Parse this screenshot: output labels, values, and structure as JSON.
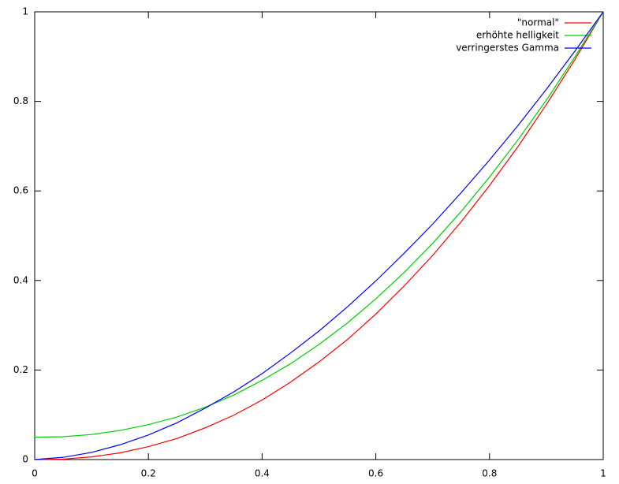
{
  "chart_data": {
    "type": "line",
    "x": [
      0,
      0.05,
      0.1,
      0.15,
      0.2,
      0.25,
      0.3,
      0.35,
      0.4,
      0.45,
      0.5,
      0.55,
      0.6,
      0.65,
      0.7,
      0.75,
      0.8,
      0.85,
      0.9,
      0.95,
      1
    ],
    "series": [
      {
        "name": "\"normal\"",
        "color": "#ff0000",
        "values": [
          0,
          0.001,
          0.006,
          0.015,
          0.029,
          0.047,
          0.071,
          0.099,
          0.133,
          0.173,
          0.218,
          0.268,
          0.325,
          0.388,
          0.456,
          0.531,
          0.612,
          0.699,
          0.793,
          0.893,
          1
        ]
      },
      {
        "name": "erhöhte helligkeit",
        "color": "#00d000",
        "values": [
          0.05,
          0.051,
          0.056,
          0.065,
          0.078,
          0.095,
          0.117,
          0.144,
          0.177,
          0.214,
          0.257,
          0.305,
          0.359,
          0.418,
          0.483,
          0.554,
          0.631,
          0.714,
          0.803,
          0.899,
          1
        ]
      },
      {
        "name": "verringerstes Gamma",
        "color": "#0000ff",
        "values": [
          0,
          0.005,
          0.016,
          0.033,
          0.055,
          0.082,
          0.115,
          0.151,
          0.192,
          0.238,
          0.287,
          0.341,
          0.399,
          0.461,
          0.526,
          0.596,
          0.669,
          0.746,
          0.827,
          0.912,
          1
        ]
      }
    ],
    "xlim": [
      0,
      1
    ],
    "xticks": [
      0,
      0.2,
      0.4,
      0.6,
      0.8,
      1
    ],
    "ylim": [
      0,
      1
    ],
    "yticks": [
      0,
      0.2,
      0.4,
      0.6,
      0.8,
      1
    ],
    "legend": "top-right"
  }
}
